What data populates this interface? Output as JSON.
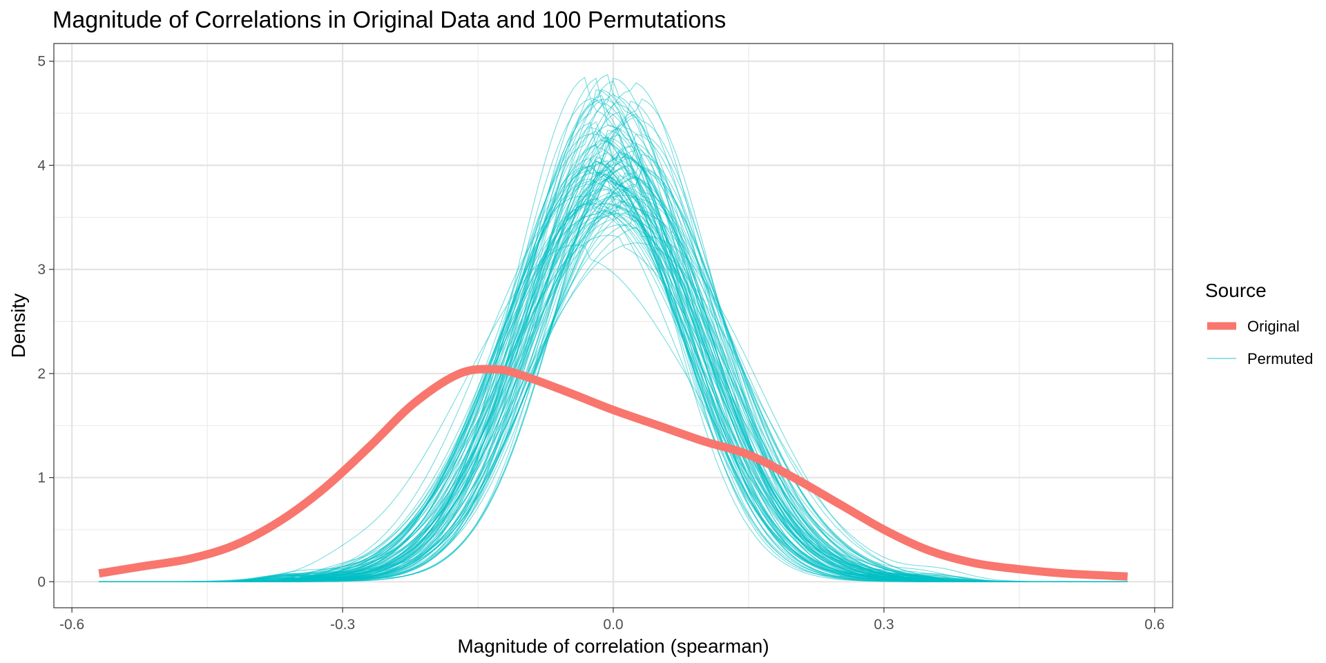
{
  "chart_data": {
    "type": "line",
    "title": "Magnitude of Correlations in Original Data and 100 Permutations",
    "xlabel": "Magnitude of correlation (spearman)",
    "ylabel": "Density",
    "xlim": [
      -0.62,
      0.62
    ],
    "ylim": [
      -0.25,
      5.17
    ],
    "x_ticks": [
      -0.6,
      -0.3,
      0.0,
      0.3,
      0.6
    ],
    "x_tick_labels": [
      "-0.6",
      "-0.3",
      "0.0",
      "0.3",
      "0.6"
    ],
    "y_ticks": [
      0,
      1,
      2,
      3,
      4,
      5
    ],
    "y_tick_labels": [
      "0",
      "1",
      "2",
      "3",
      "4",
      "5"
    ],
    "grid": true,
    "legend": {
      "title": "Source",
      "position": "right",
      "entries": [
        {
          "label": "Original",
          "color": "#F8766D"
        },
        {
          "label": "Permuted",
          "color": "#00BFC4"
        }
      ]
    },
    "series": [
      {
        "name": "Original",
        "color": "#F8766D",
        "x": [
          -0.57,
          -0.52,
          -0.47,
          -0.42,
          -0.37,
          -0.32,
          -0.27,
          -0.22,
          -0.17,
          -0.13,
          -0.1,
          -0.05,
          0.0,
          0.05,
          0.1,
          0.15,
          0.2,
          0.25,
          0.3,
          0.35,
          0.4,
          0.45,
          0.5,
          0.57
        ],
        "values": [
          0.08,
          0.15,
          0.22,
          0.35,
          0.58,
          0.9,
          1.3,
          1.72,
          2.0,
          2.04,
          1.98,
          1.82,
          1.65,
          1.5,
          1.35,
          1.22,
          1.0,
          0.75,
          0.5,
          0.3,
          0.18,
          0.12,
          0.08,
          0.05
        ]
      }
    ],
    "permuted_summary": {
      "name": "Permuted",
      "color": "#00BFC4",
      "n_curves": 100,
      "x_range": [
        -0.57,
        0.57
      ],
      "center_range": [
        -0.03,
        0.03
      ],
      "peak_density_range": [
        3.2,
        4.92
      ],
      "sd_range": [
        0.082,
        0.112
      ]
    }
  }
}
